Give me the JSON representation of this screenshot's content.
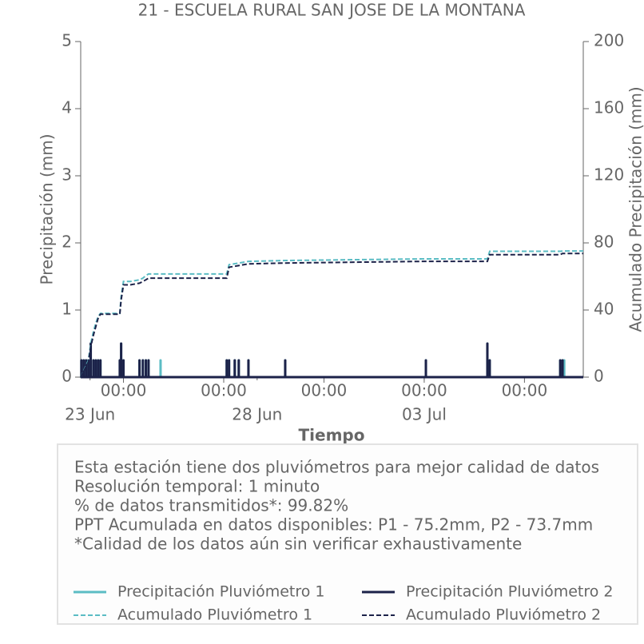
{
  "chart_data": {
    "type": "line",
    "title": "21 - ESCUELA RURAL SAN JOSE DE LA MONTANA",
    "y_label": "Precipitación (mm)",
    "y2_label": "Acumulado Precipitación (mm)",
    "x_label": "Tiempo",
    "xlim": [
      -0.28,
      14.76
    ],
    "xticks": [
      {
        "value": 1,
        "label": "00:00"
      },
      {
        "value": 4,
        "label": "00:00"
      },
      {
        "value": 7,
        "label": "00:00"
      },
      {
        "value": 10,
        "label": "00:00"
      },
      {
        "value": 13,
        "label": "00:00"
      }
    ],
    "x_date_ticks": [
      {
        "value": 0,
        "label": "23 Jun"
      },
      {
        "value": 5,
        "label": "28 Jun"
      },
      {
        "value": 10,
        "label": "03 Jul"
      }
    ],
    "ylim": [
      0,
      5
    ],
    "yticks": [
      0,
      1,
      2,
      3,
      4,
      5
    ],
    "y2lim": [
      0,
      200
    ],
    "y2ticks": [
      0,
      40,
      80,
      120,
      160,
      200
    ],
    "series": [
      {
        "name": "Precipitación Pluviómetro 1",
        "color": "#5bbcc4",
        "line_style": "spikes",
        "x": [
          -0.26,
          -0.19,
          -0.12,
          -0.05,
          0.02,
          0.1,
          0.17,
          0.24,
          0.31,
          0.89,
          0.93,
          1.0,
          1.48,
          1.58,
          1.67,
          1.75,
          2.11,
          4.09,
          4.16,
          4.33,
          4.45,
          4.74,
          5.84,
          10.05,
          11.89,
          11.96,
          14.07,
          14.14,
          14.19
        ],
        "values": [
          0.25,
          0.25,
          0.25,
          0.25,
          0.5,
          0.25,
          0.25,
          0.25,
          0.25,
          0.25,
          0.5,
          0.25,
          0.25,
          0.25,
          0.25,
          0.25,
          0.25,
          0.25,
          0.25,
          0.25,
          0.25,
          0.25,
          0.25,
          0.25,
          0.5,
          0.25,
          0.25,
          0.25,
          0.25
        ]
      },
      {
        "name": "Precipitación Pluviómetro 2",
        "color": "#1c2249",
        "line_style": "spikes",
        "x": [
          -0.26,
          -0.19,
          -0.12,
          -0.05,
          0.02,
          0.1,
          0.17,
          0.24,
          0.31,
          0.89,
          0.93,
          1.0,
          1.48,
          1.58,
          1.67,
          1.75,
          4.09,
          4.16,
          4.33,
          4.45,
          4.74,
          5.84,
          10.05,
          11.89,
          11.96,
          14.07,
          14.14
        ],
        "values": [
          0.25,
          0.25,
          0.25,
          0.25,
          0.5,
          0.25,
          0.25,
          0.25,
          0.25,
          0.25,
          0.5,
          0.25,
          0.25,
          0.25,
          0.25,
          0.25,
          0.25,
          0.25,
          0.25,
          0.25,
          0.25,
          0.25,
          0.25,
          0.5,
          0.25,
          0.25,
          0.25
        ]
      },
      {
        "name": "Acumulado Pluviómetro 1",
        "color": "#5bbcc4",
        "line_style": "dashed",
        "axis": "y2",
        "x": [
          -0.28,
          -0.05,
          0.02,
          0.1,
          0.17,
          0.24,
          0.31,
          0.89,
          0.93,
          1.0,
          1.2,
          1.48,
          1.58,
          1.67,
          1.75,
          4.09,
          4.16,
          4.45,
          4.74,
          5.84,
          10.05,
          11.89,
          11.96,
          14.07,
          14.19,
          14.76
        ],
        "values": [
          0,
          10,
          20,
          27,
          32,
          36,
          38,
          38,
          48,
          57,
          57,
          58,
          59,
          60.5,
          61.5,
          61.5,
          67,
          68,
          69,
          69.5,
          70.5,
          70.5,
          75,
          75,
          75.2,
          75.2
        ]
      },
      {
        "name": "Acumulado Pluviómetro 2",
        "color": "#1c2249",
        "line_style": "dashed",
        "axis": "y2",
        "x": [
          -0.28,
          -0.05,
          0.02,
          0.1,
          0.17,
          0.24,
          0.31,
          0.89,
          0.93,
          1.0,
          1.2,
          1.48,
          1.58,
          1.67,
          1.75,
          4.09,
          4.16,
          4.45,
          4.74,
          5.84,
          10.05,
          11.89,
          11.96,
          14.07,
          14.14,
          14.76
        ],
        "values": [
          0,
          9,
          18,
          25,
          30,
          35,
          37.5,
          37.5,
          46,
          55,
          55,
          56,
          57,
          58,
          59,
          59,
          65.5,
          66.5,
          67.5,
          68,
          69,
          69,
          73,
          73,
          73.7,
          73.7
        ]
      }
    ],
    "annotations": [
      "Esta estación tiene dos pluviómetros para mejor calidad de datos",
      "Resolución temporal: 1 minuto",
      "% de datos transmitidos*: 99.82%",
      "PPT Acumulada en datos disponibles: P1 - 75.2mm, P2 - 73.7mm",
      "*Calidad de los datos aún sin verificar exhaustivamente"
    ]
  }
}
